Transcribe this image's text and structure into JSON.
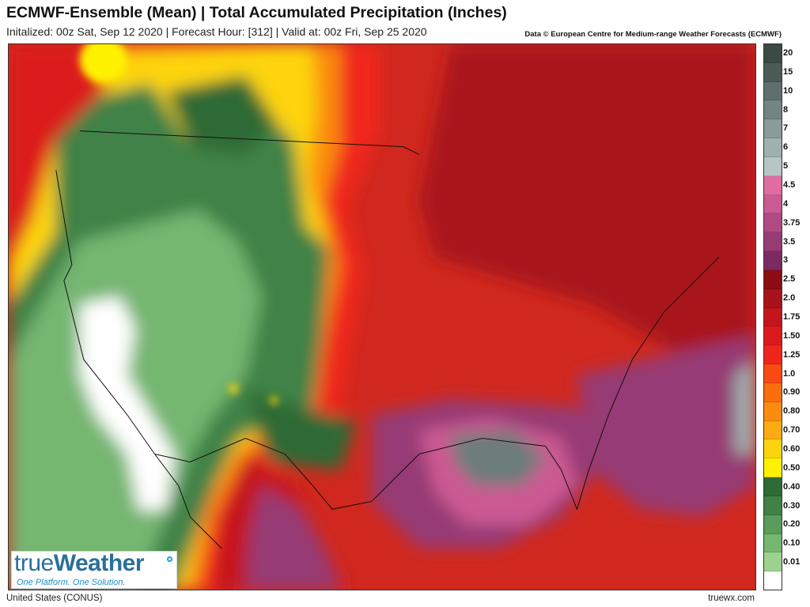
{
  "header": {
    "title": "ECMWF-Ensemble (Mean)  |  Total Accumulated Precipitation (Inches)",
    "subtitle": "Initalized: 00z Sat, Sep 12 2020  |  Forecast Hour: [312]  |  Valid at: 00z Fri, Sep 25 2020",
    "credit": "Data © European Centre for Medium-range Weather Forecasts (ECMWF)"
  },
  "map": {
    "region_label": "United States (CONUS)",
    "site": "truewx.com"
  },
  "logo": {
    "brand_true": "true",
    "brand_weather": "Weather",
    "tagline": "One Platform. One Solution."
  },
  "legend": {
    "items": [
      {
        "label": "20",
        "color": "#3a4a44"
      },
      {
        "label": "15",
        "color": "#4b5c57"
      },
      {
        "label": "10",
        "color": "#5f706c"
      },
      {
        "label": "8",
        "color": "#738582"
      },
      {
        "label": "7",
        "color": "#8a9b99"
      },
      {
        "label": "6",
        "color": "#9fb0b0"
      },
      {
        "label": "5",
        "color": "#b6c5c6"
      },
      {
        "label": "4.5",
        "color": "#e06ca0"
      },
      {
        "label": "4",
        "color": "#cc5a93"
      },
      {
        "label": "3.75",
        "color": "#b04a83"
      },
      {
        "label": "3.5",
        "color": "#963b74"
      },
      {
        "label": "3",
        "color": "#7c2a62"
      },
      {
        "label": "2.5",
        "color": "#8c0c14"
      },
      {
        "label": "2.0",
        "color": "#a8121a"
      },
      {
        "label": "1.75",
        "color": "#c4161c"
      },
      {
        "label": "1.50",
        "color": "#dc1a1e"
      },
      {
        "label": "1.25",
        "color": "#f0261c"
      },
      {
        "label": "1.0",
        "color": "#f84a12"
      },
      {
        "label": "0.90",
        "color": "#fa6e0e"
      },
      {
        "label": "0.80",
        "color": "#fb8c10"
      },
      {
        "label": "0.70",
        "color": "#fcac12"
      },
      {
        "label": "0.60",
        "color": "#fdd40c"
      },
      {
        "label": "0.50",
        "color": "#fff200"
      },
      {
        "label": "0.40",
        "color": "#2e6a34"
      },
      {
        "label": "0.30",
        "color": "#3f8246"
      },
      {
        "label": "0.20",
        "color": "#5a9c5c"
      },
      {
        "label": "0.10",
        "color": "#75b671"
      },
      {
        "label": "0.01",
        "color": "#9cd28e"
      },
      {
        "label": "",
        "color": "#ffffff"
      }
    ]
  }
}
